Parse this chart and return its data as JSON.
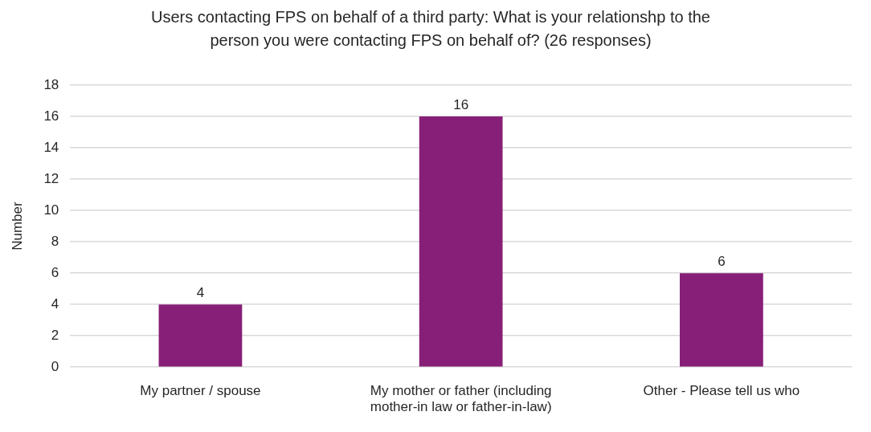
{
  "chart_data": {
    "type": "bar",
    "title": "Users contacting FPS on behalf of a third party: What is your relationshp to the person you were contacting FPS on behalf of? (26 responses)",
    "ylabel": "Number",
    "categories": [
      "My partner / spouse",
      "My mother or father (including mother-in law or father-in-law)",
      "Other - Please tell us who"
    ],
    "values": [
      4,
      16,
      6
    ],
    "color": "#871f78",
    "ylim": [
      0,
      18
    ],
    "yticks": [
      0,
      2,
      4,
      6,
      8,
      10,
      12,
      14,
      16,
      18
    ],
    "grid": "y",
    "data_labels": true
  }
}
